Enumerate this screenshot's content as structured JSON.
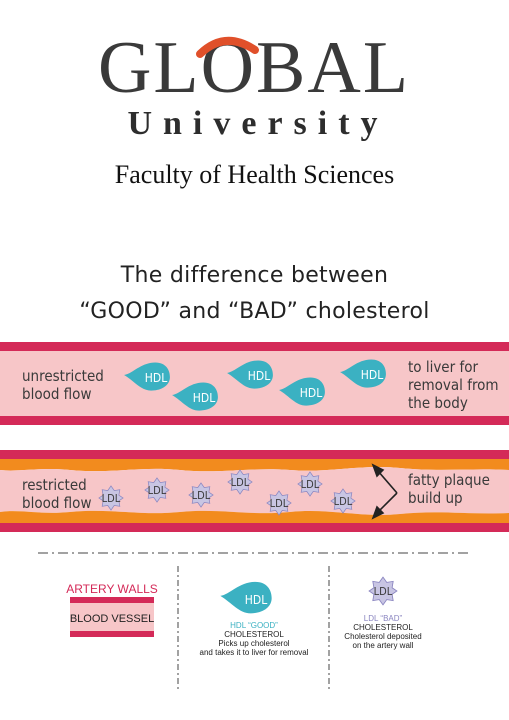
{
  "logo": {
    "brand": "GLOBAL",
    "sub": "University",
    "accent_color": "#e0502a"
  },
  "faculty": "Faculty of Health Sciences",
  "headline": {
    "line1": "The difference between",
    "line2": "“GOOD” and “BAD” cholesterol"
  },
  "vessel_hdl": {
    "left_label": [
      "unrestricted",
      "blood flow"
    ],
    "right_label": [
      "to liver for",
      "removal from",
      "the body"
    ],
    "particle_label": "HDL"
  },
  "vessel_ldl": {
    "left_label": [
      "restricted",
      "blood flow"
    ],
    "right_label": [
      "fatty plaque",
      "build up"
    ],
    "particle_label": "LDL"
  },
  "legend": {
    "artery_walls": "ARTERY WALLS",
    "blood_vessel": "BLOOD VESSEL",
    "hdl_title": "HDL “GOOD”",
    "hdl_sub": "CHOLESTEROL",
    "hdl_desc": [
      "Picks up cholesterol",
      "and takes it to liver for removal"
    ],
    "ldl_title": "LDL “BAD”",
    "ldl_sub": "CHOLESTEROL",
    "ldl_desc": [
      "Cholesterol deposited",
      "on the artery wall"
    ]
  },
  "colors": {
    "artery_wall": "#d42a58",
    "blood": "#f7c6c8",
    "hdl": "#3bb1c2",
    "ldl_fill": "#c8c5e3",
    "ldl_stroke": "#8a85c0",
    "plaque": "#f28b1e"
  }
}
